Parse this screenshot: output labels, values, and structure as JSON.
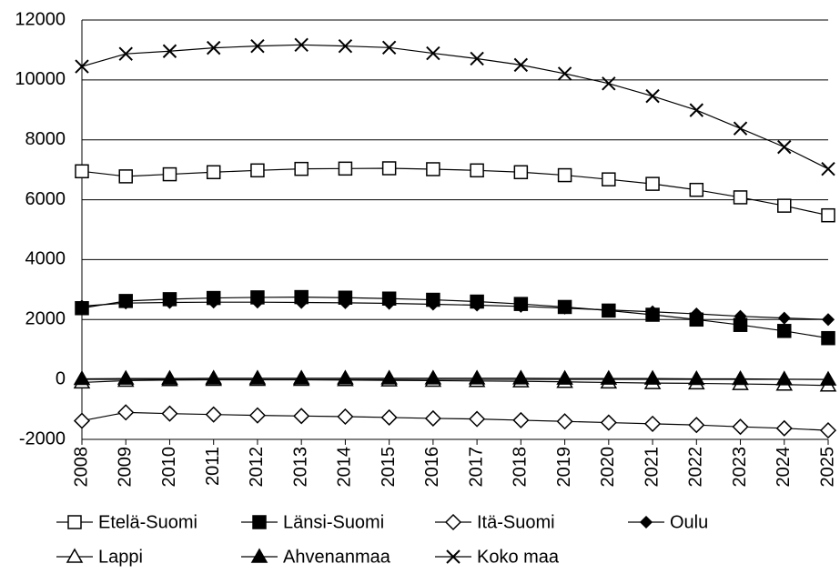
{
  "chart_data": {
    "type": "line",
    "x": [
      2008,
      2009,
      2010,
      2011,
      2012,
      2013,
      2014,
      2015,
      2016,
      2017,
      2018,
      2019,
      2020,
      2021,
      2022,
      2023,
      2024,
      2025
    ],
    "xlim": [
      2008,
      2025
    ],
    "ylim": [
      -2000,
      12000
    ],
    "yticks": [
      -2000,
      0,
      2000,
      4000,
      6000,
      8000,
      10000,
      12000
    ],
    "grid": true,
    "legend": "bottom",
    "series": [
      {
        "name": "Etelä-Suomi",
        "color": "#000000",
        "marker": "square-open",
        "values": [
          6950,
          6780,
          6850,
          6920,
          6980,
          7030,
          7040,
          7050,
          7020,
          6980,
          6920,
          6820,
          6680,
          6530,
          6330,
          6080,
          5800,
          5480
        ]
      },
      {
        "name": "Länsi-Suomi",
        "color": "#000000",
        "marker": "square",
        "values": [
          2380,
          2620,
          2680,
          2720,
          2740,
          2750,
          2730,
          2700,
          2660,
          2600,
          2520,
          2420,
          2300,
          2160,
          2000,
          1820,
          1620,
          1380
        ]
      },
      {
        "name": "Itä-Suomi",
        "color": "#000000",
        "marker": "diamond-open",
        "values": [
          -1380,
          -1100,
          -1140,
          -1170,
          -1200,
          -1220,
          -1240,
          -1270,
          -1300,
          -1320,
          -1360,
          -1400,
          -1440,
          -1480,
          -1520,
          -1580,
          -1630,
          -1700
        ]
      },
      {
        "name": "Oulu",
        "color": "#000000",
        "marker": "diamond",
        "values": [
          2450,
          2550,
          2570,
          2580,
          2580,
          2570,
          2560,
          2540,
          2510,
          2480,
          2440,
          2380,
          2320,
          2260,
          2190,
          2110,
          2050,
          2000
        ]
      },
      {
        "name": "Lappi",
        "color": "#000000",
        "marker": "triangle-open",
        "values": [
          -100,
          -40,
          -20,
          -10,
          -10,
          -10,
          -20,
          -30,
          -40,
          -50,
          -60,
          -80,
          -100,
          -120,
          -130,
          -150,
          -170,
          -200
        ]
      },
      {
        "name": "Ahvenanmaa",
        "color": "#000000",
        "marker": "triangle",
        "values": [
          20,
          30,
          30,
          40,
          40,
          40,
          40,
          40,
          40,
          40,
          40,
          30,
          30,
          30,
          20,
          20,
          10,
          0
        ]
      },
      {
        "name": "Koko maa",
        "color": "#000000",
        "marker": "x",
        "values": [
          10450,
          10870,
          10960,
          11070,
          11130,
          11170,
          11130,
          11080,
          10890,
          10710,
          10500,
          10210,
          9880,
          9460,
          8990,
          8380,
          7760,
          7030
        ]
      }
    ]
  }
}
